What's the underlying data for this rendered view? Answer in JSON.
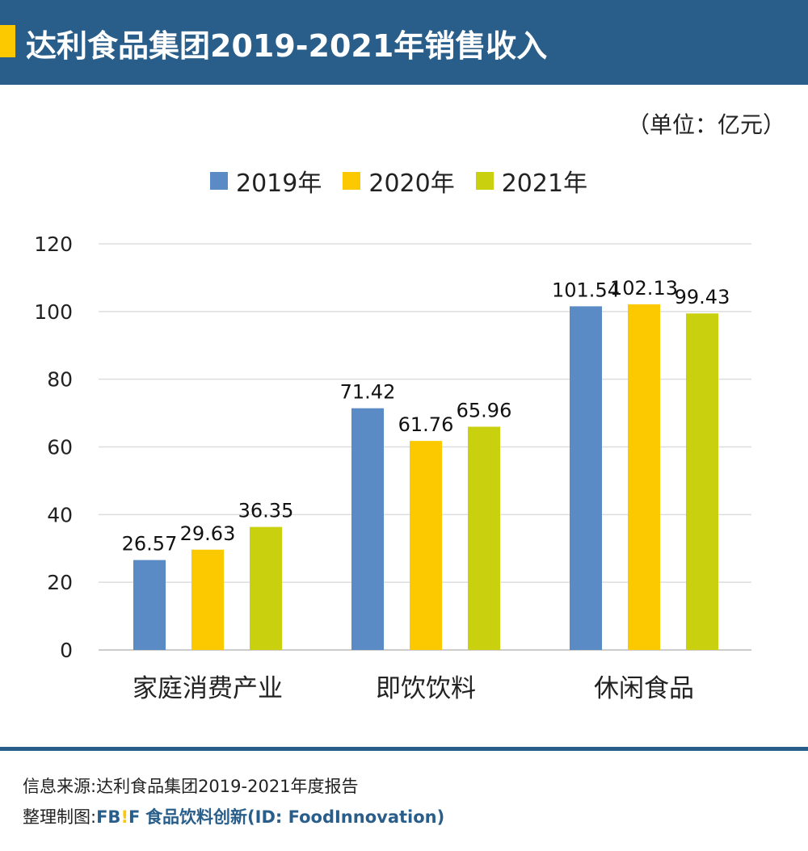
{
  "header": {
    "title": "达利食品集团2019-2021年销售收入"
  },
  "chart_data": {
    "type": "bar",
    "title": "达利食品集团2019-2021年销售收入",
    "unit": "（单位：亿元）",
    "categories": [
      "家庭消费产业",
      "即饮饮料",
      "休闲食品"
    ],
    "series": [
      {
        "name": "2019年",
        "color": "#5b8bc4",
        "values": [
          26.57,
          71.42,
          101.54
        ]
      },
      {
        "name": "2020年",
        "color": "#fcc800",
        "values": [
          29.63,
          61.76,
          102.13
        ]
      },
      {
        "name": "2021年",
        "color": "#c9d10e",
        "values": [
          36.35,
          65.96,
          99.43
        ]
      }
    ],
    "ylim": [
      0,
      120
    ],
    "yticks": [
      0,
      20,
      40,
      60,
      80,
      100,
      120
    ],
    "grid": true,
    "legend": "top"
  },
  "footer": {
    "source": "信息来源:达利食品集团2019-2021年度报告",
    "credit_label": "整理制图:",
    "brand_fb": "FB",
    "brand_bang": "!",
    "brand_f": "F",
    "credit_text": "食品饮料创新(ID: FoodInnovation)"
  }
}
